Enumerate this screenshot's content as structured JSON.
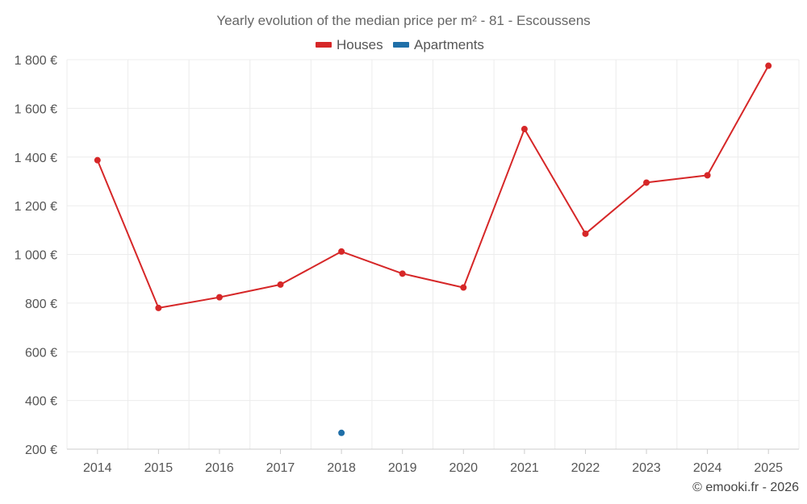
{
  "chart_data": {
    "type": "line",
    "title": "Yearly evolution of the median price per m² - 81 - Escoussens",
    "categories": [
      "2014",
      "2015",
      "2016",
      "2017",
      "2018",
      "2019",
      "2020",
      "2021",
      "2022",
      "2023",
      "2024",
      "2025"
    ],
    "series": [
      {
        "name": "Houses",
        "color": "#d62728",
        "values": [
          1387,
          780,
          824,
          876,
          1012,
          921,
          864,
          1515,
          1085,
          1295,
          1325,
          1775
        ]
      },
      {
        "name": "Apartments",
        "color": "#1f6fa8",
        "values": [
          null,
          null,
          null,
          null,
          267,
          null,
          null,
          null,
          null,
          null,
          null,
          null
        ]
      }
    ],
    "ylim": [
      200,
      1800
    ],
    "yticks": [
      200,
      400,
      600,
      800,
      1000,
      1200,
      1400,
      1600,
      1800
    ],
    "ytick_labels": [
      "200 €",
      "400 €",
      "600 €",
      "800 €",
      "1 000 €",
      "1 200 €",
      "1 400 €",
      "1 600 €",
      "1 800 €"
    ],
    "xlabel": "",
    "ylabel": "",
    "grid": true,
    "legend": "top-center"
  },
  "credit": "© emooki.fr - 2026"
}
